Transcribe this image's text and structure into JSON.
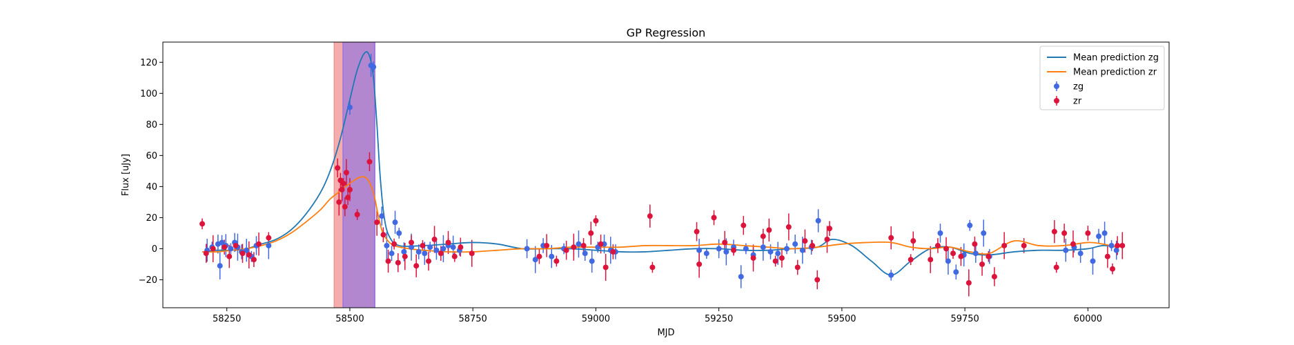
{
  "chart_data": {
    "type": "scatter",
    "title": "GP Regression",
    "xlabel": "MJD",
    "ylabel": "Flux [uJy]",
    "xlim": [
      58120,
      60165
    ],
    "ylim": [
      -38,
      133
    ],
    "xticks": [
      58250,
      58500,
      58750,
      59000,
      59250,
      59500,
      59750,
      60000
    ],
    "yticks": [
      -20,
      0,
      20,
      40,
      60,
      80,
      100,
      120
    ],
    "colors": {
      "zg_line": "#1f77b4",
      "zr_line": "#ff7f0e",
      "zg_points": "#4169e1",
      "zr_points": "#dc143c",
      "span_zr": "#f08080",
      "span_zg": "#7b68ee"
    },
    "spans": [
      {
        "name": "zr",
        "x": [
          58468,
          58550
        ]
      },
      {
        "name": "zg",
        "x": [
          58486,
          58551
        ]
      }
    ],
    "legend": {
      "position": "upper right",
      "entries": [
        {
          "label": "Mean prediction zg",
          "kind": "line",
          "series": "zg"
        },
        {
          "label": "Mean prediction zr",
          "kind": "line",
          "series": "zr"
        },
        {
          "label": "zg",
          "kind": "marker",
          "series": "zg"
        },
        {
          "label": "zr",
          "kind": "marker",
          "series": "zr"
        }
      ]
    },
    "lines": [
      {
        "name": "Mean prediction zg",
        "x": [
          58200,
          58230,
          58260,
          58290,
          58320,
          58350,
          58380,
          58410,
          58440,
          58460,
          58480,
          58500,
          58515,
          58530,
          58540,
          58548,
          58555,
          58562,
          58570,
          58580,
          58600,
          58650,
          58700,
          58750,
          58800,
          58850,
          58900,
          58950,
          59000,
          59050,
          59100,
          59150,
          59200,
          59250,
          59300,
          59350,
          59400,
          59450,
          59480,
          59520,
          59560,
          59600,
          59640,
          59680,
          59720,
          59760,
          59800,
          59850,
          59900,
          59950,
          60000,
          60030,
          60060
        ],
        "y": [
          -2,
          -1,
          -1,
          0,
          3,
          6,
          12,
          22,
          36,
          50,
          70,
          96,
          115,
          126,
          124,
          110,
          80,
          45,
          20,
          8,
          2,
          2,
          3,
          4,
          3,
          0,
          0,
          0,
          -1,
          -2,
          -2,
          -1,
          0,
          0,
          -1,
          -1,
          0,
          1,
          6,
          2,
          -8,
          -17,
          -8,
          0,
          1,
          -3,
          -4,
          -2,
          -1,
          -1,
          0,
          2,
          1
        ]
      },
      {
        "name": "Mean prediction zr",
        "x": [
          58200,
          58230,
          58260,
          58290,
          58320,
          58350,
          58380,
          58410,
          58440,
          58460,
          58480,
          58500,
          58520,
          58535,
          58548,
          58556,
          58565,
          58575,
          58590,
          58620,
          58650,
          58700,
          58750,
          58800,
          58850,
          58900,
          58950,
          59000,
          59050,
          59100,
          59150,
          59200,
          59250,
          59300,
          59350,
          59400,
          59450,
          59500,
          59550,
          59600,
          59640,
          59680,
          59720,
          59760,
          59800,
          59850,
          59900,
          59950,
          60000,
          60030,
          60060
        ],
        "y": [
          -2,
          -2,
          -1,
          0,
          2,
          5,
          10,
          17,
          25,
          32,
          37,
          42,
          46,
          45,
          36,
          24,
          12,
          6,
          2,
          0,
          -1,
          -2,
          -2,
          -1,
          0,
          0,
          1,
          1,
          1,
          2,
          2,
          2,
          3,
          2,
          1,
          0,
          1,
          3,
          4,
          4,
          1,
          0,
          1,
          -2,
          -3,
          5,
          2,
          2,
          4,
          3,
          1
        ]
      }
    ],
    "series": [
      {
        "name": "zg",
        "x": [
          58210,
          58220,
          58232,
          58236,
          58240,
          58248,
          58258,
          58266,
          58272,
          58280,
          58290,
          58300,
          58310,
          58335,
          58500,
          58543,
          58548,
          58565,
          58575,
          58585,
          58592,
          58600,
          58610,
          58625,
          58640,
          58652,
          58663,
          58676,
          58690,
          58700,
          58710,
          58723,
          58860,
          58877,
          58893,
          58910,
          58935,
          58955,
          58965,
          58978,
          58992,
          59004,
          59017,
          59030,
          59040,
          59210,
          59225,
          59250,
          59265,
          59280,
          59295,
          59305,
          59320,
          59340,
          59355,
          59370,
          59388,
          59405,
          59420,
          59438,
          59452,
          59600,
          59700,
          59716,
          59732,
          59748,
          59760,
          59772,
          59788,
          59800,
          59955,
          59972,
          59985,
          60010,
          60022,
          60034,
          60048,
          60058
        ],
        "y": [
          -1,
          1,
          3,
          -11,
          4,
          2,
          0,
          4,
          1,
          -2,
          -1,
          -5,
          2,
          2,
          91,
          118,
          117,
          21,
          2,
          -3,
          17,
          10,
          -2,
          1,
          -2,
          -3,
          1,
          -1,
          0,
          2,
          1,
          -1,
          0,
          -7,
          2,
          -5,
          0,
          1,
          3,
          -3,
          -8,
          1,
          3,
          -1,
          -2,
          -1,
          -3,
          0,
          -2,
          1,
          -18,
          0,
          -4,
          1,
          -2,
          -3,
          0,
          3,
          -1,
          1,
          18,
          -17,
          10,
          -8,
          -15,
          -4,
          15,
          -3,
          10,
          -5,
          -1,
          1,
          -3,
          -8,
          8,
          10,
          2,
          -1
        ]
      },
      {
        "name": "zr",
        "x": [
          58200,
          58208,
          58222,
          58245,
          58255,
          58268,
          58282,
          58295,
          58305,
          58315,
          58335,
          58475,
          58478,
          58481,
          58484,
          58487,
          58490,
          58493,
          58496,
          58500,
          58515,
          58540,
          58555,
          58568,
          58578,
          58590,
          58598,
          58612,
          58625,
          58635,
          58648,
          58660,
          58672,
          58685,
          58700,
          58713,
          58725,
          58748,
          58885,
          58900,
          58920,
          58940,
          58955,
          58975,
          58990,
          59000,
          59010,
          59020,
          59035,
          59110,
          59115,
          59205,
          59210,
          59240,
          59262,
          59280,
          59300,
          59320,
          59340,
          59352,
          59365,
          59378,
          59392,
          59410,
          59425,
          59440,
          59450,
          59470,
          59475,
          59600,
          59640,
          59645,
          59680,
          59695,
          59712,
          59726,
          59742,
          59758,
          59770,
          59785,
          59798,
          59810,
          59830,
          59870,
          59932,
          59936,
          59952,
          59970,
          60000,
          60040,
          60050,
          60060,
          60070
        ],
        "y": [
          16,
          -3,
          0,
          1,
          -5,
          2,
          -3,
          -4,
          -7,
          3,
          7,
          52,
          30,
          44,
          38,
          42,
          27,
          49,
          33,
          38,
          22,
          56,
          17,
          9,
          -8,
          3,
          -9,
          -5,
          4,
          -11,
          2,
          -8,
          6,
          -3,
          4,
          -5,
          1,
          -3,
          -5,
          2,
          -8,
          -1,
          1,
          2,
          10,
          18,
          3,
          -12,
          -2,
          21,
          -12,
          11,
          -10,
          20,
          4,
          -1,
          15,
          -6,
          8,
          12,
          -8,
          -6,
          14,
          -12,
          5,
          2,
          -20,
          6,
          13,
          7,
          -7,
          5,
          -7,
          2,
          0,
          -3,
          -5,
          -22,
          3,
          -10,
          -5,
          -18,
          2,
          2,
          11,
          -12,
          10,
          3,
          10,
          -5,
          -13,
          2,
          2
        ]
      }
    ]
  }
}
